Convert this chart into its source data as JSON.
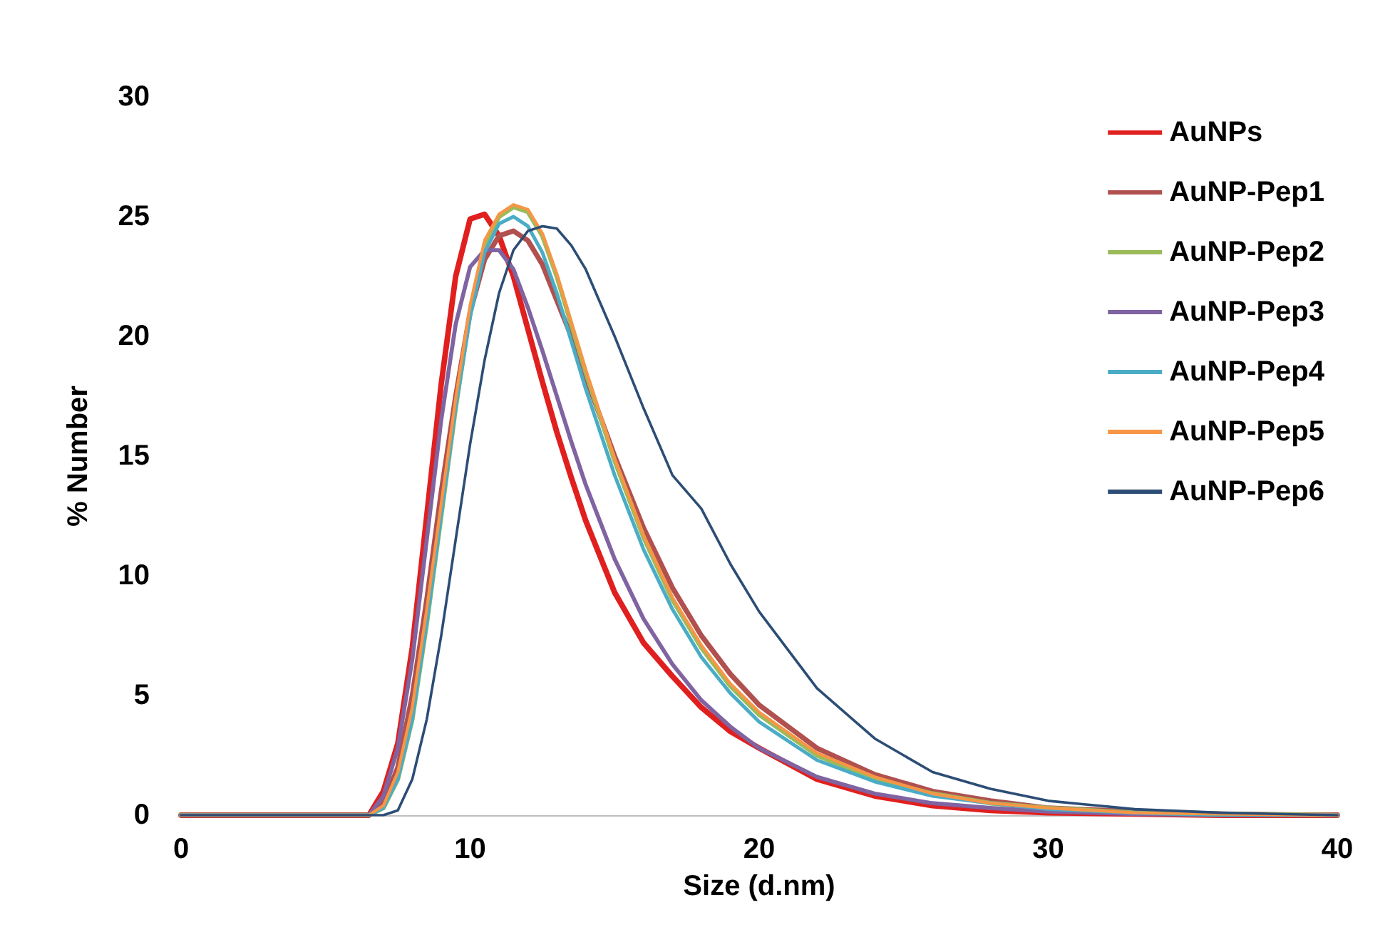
{
  "chart_data": {
    "type": "line",
    "xlabel": "Size (d.nm)",
    "ylabel": "% Number",
    "x": [
      0,
      6.5,
      7,
      7.5,
      8,
      8.5,
      9,
      9.5,
      10,
      10.5,
      11,
      11.5,
      12,
      12.5,
      13,
      13.5,
      14,
      15,
      16,
      17,
      18,
      19,
      20,
      22,
      24,
      26,
      28,
      30,
      33,
      36,
      40
    ],
    "series": [
      {
        "name": "AuNPs",
        "color": "#e0201f",
        "values": [
          0,
          0,
          1,
          3,
          7,
          12.5,
          18,
          22.5,
          24.9,
          25.1,
          24.2,
          22.5,
          20.3,
          18.1,
          16,
          14.1,
          12.3,
          9.3,
          7.2,
          5.8,
          4.5,
          3.5,
          2.8,
          1.5,
          0.8,
          0.4,
          0.2,
          0.1,
          0.05,
          0,
          0
        ]
      },
      {
        "name": "AuNP-Pep1",
        "color": "#b0504f",
        "values": [
          0,
          0,
          0.5,
          2,
          5,
          9,
          13.5,
          17.5,
          21,
          23.2,
          24.2,
          24.4,
          24,
          23,
          21.5,
          20,
          18.3,
          15,
          12,
          9.5,
          7.5,
          5.9,
          4.6,
          2.8,
          1.7,
          1,
          0.6,
          0.3,
          0.15,
          0.05,
          0
        ]
      },
      {
        "name": "AuNP-Pep2",
        "color": "#9bbb59",
        "values": [
          0,
          0,
          0.3,
          1.5,
          4,
          8,
          12.5,
          17,
          21,
          23.8,
          25,
          25.4,
          25.2,
          24.2,
          22.5,
          20.5,
          18.5,
          14.8,
          11.6,
          9,
          7,
          5.4,
          4.2,
          2.5,
          1.5,
          0.9,
          0.5,
          0.3,
          0.1,
          0.05,
          0
        ]
      },
      {
        "name": "AuNP-Pep3",
        "color": "#8064a2",
        "values": [
          0,
          0,
          0.8,
          2.8,
          6.5,
          11.5,
          16.5,
          20.5,
          22.9,
          23.6,
          23.6,
          22.8,
          21.2,
          19.4,
          17.5,
          15.6,
          13.8,
          10.7,
          8.2,
          6.3,
          4.8,
          3.7,
          2.8,
          1.6,
          0.9,
          0.5,
          0.3,
          0.15,
          0.05,
          0,
          0
        ]
      },
      {
        "name": "AuNP-Pep4",
        "color": "#4bacc6",
        "values": [
          0,
          0,
          0.3,
          1.5,
          4,
          8,
          12.5,
          17,
          20.8,
          23.5,
          24.7,
          25,
          24.6,
          23.5,
          21.8,
          19.8,
          17.8,
          14.2,
          11.1,
          8.6,
          6.6,
          5.1,
          3.9,
          2.3,
          1.4,
          0.8,
          0.5,
          0.25,
          0.1,
          0,
          0
        ]
      },
      {
        "name": "AuNP-Pep5",
        "color": "#f79646",
        "values": [
          0,
          0,
          0.4,
          1.8,
          4.5,
          8.6,
          13,
          17.4,
          21.3,
          24,
          25.1,
          25.5,
          25.3,
          24.3,
          22.6,
          20.6,
          18.6,
          14.9,
          11.7,
          9.1,
          7.1,
          5.5,
          4.3,
          2.6,
          1.6,
          0.9,
          0.5,
          0.3,
          0.1,
          0.05,
          0
        ]
      },
      {
        "name": "AuNP-Pep6",
        "color": "#2c4d75",
        "values": [
          0,
          0,
          0,
          0.2,
          1.5,
          4,
          7.5,
          11.5,
          15.5,
          19,
          21.8,
          23.6,
          24.4,
          24.6,
          24.5,
          23.8,
          22.8,
          20,
          17,
          14.2,
          12.8,
          10.5,
          8.5,
          5.3,
          3.2,
          1.8,
          1.1,
          0.6,
          0.25,
          0.1,
          0
        ]
      }
    ],
    "xlim": [
      0,
      40
    ],
    "xticks": [
      0,
      10,
      20,
      30,
      40
    ],
    "ylim": [
      0,
      30
    ],
    "yticks": [
      0,
      5,
      10,
      15,
      20,
      25,
      30
    ],
    "grid": false,
    "legend": "top right",
    "marker": "none",
    "line_style": "solid"
  }
}
